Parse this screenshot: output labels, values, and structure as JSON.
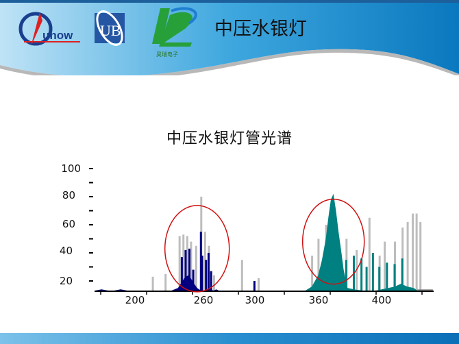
{
  "header": {
    "title": "中压水银灯",
    "logos": [
      {
        "name": "unow",
        "text": "unow"
      },
      {
        "name": "ub",
        "text": "UB"
      },
      {
        "name": "haorui",
        "text": "昊瑞电子"
      }
    ]
  },
  "colors": {
    "uv_region": "#000080",
    "visible_region": "#008080",
    "lines": "#bdbdbd",
    "ellipse": "#d01010"
  },
  "chart_data": {
    "type": "area",
    "title": "中压水银灯管光谱",
    "xlabel": "",
    "ylabel": "",
    "yticks": [
      "100",
      "80",
      "60",
      "40",
      "20"
    ],
    "ytick_values": [
      100,
      80,
      60,
      40,
      20
    ],
    "xticks": [
      "200",
      "260",
      "300",
      "360",
      "400"
    ],
    "xtick_values": [
      200,
      260,
      300,
      360,
      400
    ],
    "xlim": [
      175,
      440
    ],
    "ylim": [
      7,
      100
    ],
    "series": [
      {
        "name": "uv-envelope",
        "color": "#000080",
        "points": [
          [
            175,
            8
          ],
          [
            180,
            14
          ],
          [
            185,
            12
          ],
          [
            190,
            12
          ],
          [
            195,
            14
          ],
          [
            200,
            9
          ],
          [
            205,
            10
          ],
          [
            210,
            11
          ],
          [
            215,
            10
          ],
          [
            220,
            9
          ],
          [
            225,
            11
          ],
          [
            230,
            12
          ],
          [
            235,
            13
          ],
          [
            240,
            15
          ],
          [
            245,
            22
          ],
          [
            248,
            24
          ],
          [
            250,
            22
          ],
          [
            252,
            19
          ],
          [
            255,
            15
          ],
          [
            258,
            12
          ],
          [
            260,
            10
          ],
          [
            262,
            12
          ],
          [
            265,
            14
          ],
          [
            268,
            13
          ],
          [
            270,
            14
          ],
          [
            272,
            9
          ],
          [
            280,
            8
          ],
          [
            285,
            10
          ],
          [
            290,
            8
          ],
          [
            300,
            8
          ],
          [
            305,
            8
          ],
          [
            310,
            10
          ],
          [
            315,
            12
          ],
          [
            320,
            13
          ],
          [
            325,
            11
          ],
          [
            328,
            7
          ]
        ]
      },
      {
        "name": "uv-spikes",
        "color": "#000080",
        "points": [
          [
            243,
            37
          ],
          [
            246,
            42
          ],
          [
            249,
            43
          ],
          [
            252,
            28
          ],
          [
            258,
            55
          ],
          [
            259,
            38
          ],
          [
            262,
            35
          ],
          [
            264,
            40
          ],
          [
            266,
            27
          ],
          [
            300,
            20
          ]
        ]
      },
      {
        "name": "visible-envelope",
        "color": "#008080",
        "points": [
          [
            322,
            12
          ],
          [
            330,
            10
          ],
          [
            335,
            9
          ],
          [
            340,
            12
          ],
          [
            345,
            16
          ],
          [
            350,
            24
          ],
          [
            353,
            35
          ],
          [
            356,
            50
          ],
          [
            358,
            65
          ],
          [
            360,
            78
          ],
          [
            362,
            82
          ],
          [
            364,
            70
          ],
          [
            366,
            55
          ],
          [
            368,
            42
          ],
          [
            370,
            28
          ],
          [
            373,
            15
          ],
          [
            378,
            14
          ],
          [
            385,
            12
          ],
          [
            390,
            12
          ],
          [
            395,
            13
          ],
          [
            400,
            14
          ],
          [
            405,
            15
          ],
          [
            410,
            16
          ],
          [
            415,
            18
          ],
          [
            420,
            16
          ],
          [
            425,
            15
          ],
          [
            428,
            7
          ]
        ]
      },
      {
        "name": "visible-spikes",
        "color": "#008080",
        "points": [
          [
            372,
            35
          ],
          [
            378,
            38
          ],
          [
            384,
            36
          ],
          [
            388,
            30
          ],
          [
            393,
            40
          ],
          [
            398,
            30
          ],
          [
            404,
            33
          ],
          [
            410,
            32
          ],
          [
            416,
            36
          ]
        ]
      },
      {
        "name": "grey-lines",
        "color": "#bdbdbd",
        "points": [
          [
            220,
            23
          ],
          [
            230,
            25
          ],
          [
            241,
            52
          ],
          [
            244,
            53
          ],
          [
            247,
            52
          ],
          [
            250,
            48
          ],
          [
            254,
            45
          ],
          [
            258,
            80
          ],
          [
            261,
            55
          ],
          [
            264,
            45
          ],
          [
            268,
            24
          ],
          [
            290,
            35
          ],
          [
            303,
            22
          ],
          [
            345,
            38
          ],
          [
            350,
            50
          ],
          [
            356,
            60
          ],
          [
            372,
            50
          ],
          [
            380,
            42
          ],
          [
            390,
            65
          ],
          [
            398,
            38
          ],
          [
            402,
            48
          ],
          [
            410,
            48
          ],
          [
            416,
            58
          ],
          [
            420,
            62
          ],
          [
            424,
            68
          ],
          [
            427,
            68
          ],
          [
            430,
            62
          ]
        ]
      },
      {
        "name": "grey-tail",
        "color": "#888888",
        "points": [
          [
            428,
            14
          ],
          [
            440,
            14
          ]
        ]
      }
    ],
    "annotations": [
      {
        "type": "ellipse",
        "center": [
          255,
          43
        ],
        "label": ""
      },
      {
        "type": "ellipse",
        "center": [
          362,
          48
        ],
        "label": ""
      }
    ]
  }
}
